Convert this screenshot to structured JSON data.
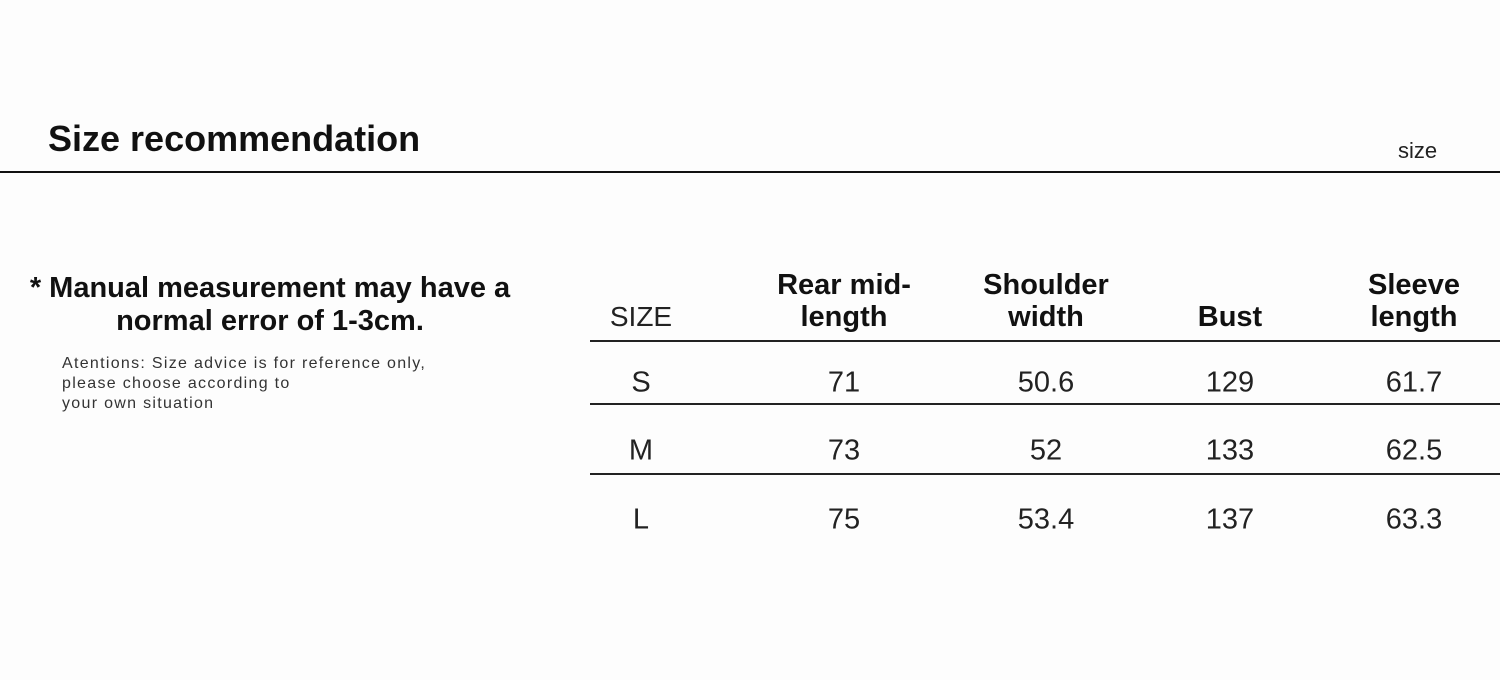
{
  "header": {
    "title": "Size recommendation",
    "unit_label": "size"
  },
  "notice": {
    "text": "* Manual measurement may have a normal error of 1-3cm.",
    "attention_lines": [
      "Atentions: Size advice is for reference only,",
      "please choose according to",
      "your own situation"
    ]
  },
  "table": {
    "columns": [
      "SIZE",
      "Rear mid-length",
      "Shoulder width",
      "Bust",
      "Sleeve length"
    ],
    "rows": [
      [
        "S",
        "71",
        "50.6",
        "129",
        "61.7"
      ],
      [
        "M",
        "73",
        "52",
        "133",
        "62.5"
      ],
      [
        "L",
        "75",
        "53.4",
        "137",
        "63.3"
      ]
    ]
  }
}
